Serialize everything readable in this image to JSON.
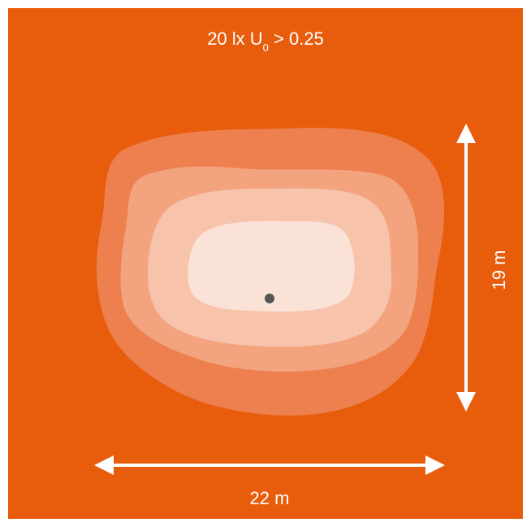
{
  "colors": {
    "background": "#e85d0c",
    "zone_1": "#ee8050",
    "zone_2": "#f3a47f",
    "zone_3": "#f7c3aa",
    "zone_4": "#fbe2d7",
    "luminaire": "#555555",
    "text": "#ffffff"
  },
  "title": {
    "value_unit": "20 lx U",
    "subscript": "0",
    "condition": " > 0.25"
  },
  "dimensions": {
    "width_label": "22 m",
    "height_label": "19 m"
  }
}
